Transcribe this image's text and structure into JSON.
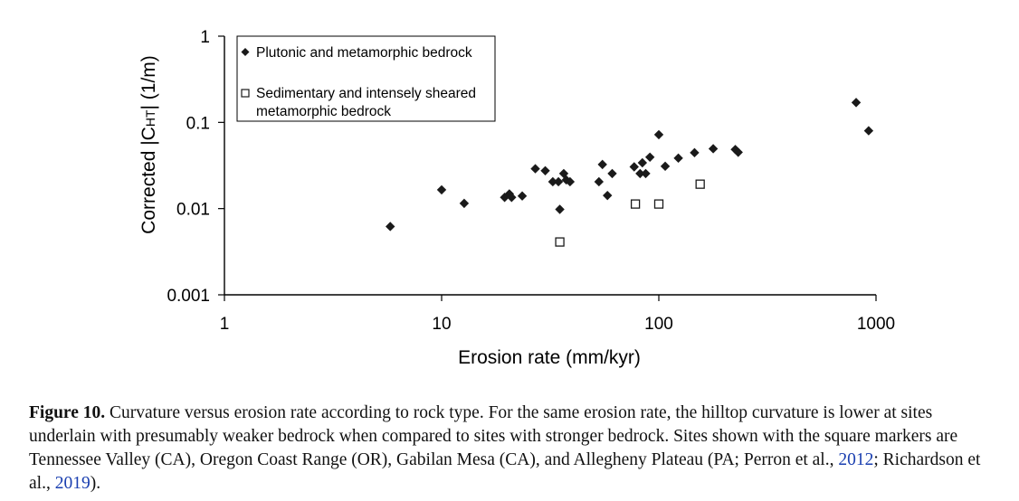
{
  "chart_data": {
    "type": "scatter",
    "xscale": "log",
    "yscale": "log",
    "xlim": [
      1,
      1000
    ],
    "ylim": [
      0.001,
      1
    ],
    "xlabel": "Erosion rate (mm/kyr)",
    "ylabel": "Corrected |C",
    "ylabel_sub": "HT",
    "ylabel_tail": "| (1/m)",
    "x_ticks": [
      {
        "value": 1,
        "label": "1"
      },
      {
        "value": 10,
        "label": "10"
      },
      {
        "value": 100,
        "label": "100"
      },
      {
        "value": 1000,
        "label": "1000"
      }
    ],
    "y_ticks": [
      {
        "value": 1,
        "label": "1"
      },
      {
        "value": 0.1,
        "label": "0.1"
      },
      {
        "value": 0.01,
        "label": "0.01"
      },
      {
        "value": 0.001,
        "label": "0.001"
      }
    ],
    "grid": false,
    "legend_position": "top-left",
    "series": [
      {
        "name": "Plutonic and metamorphic bedrock",
        "marker": "diamond-filled",
        "color": "#1a1a1a",
        "points": [
          [
            5.8,
            0.0062
          ],
          [
            10,
            0.0165
          ],
          [
            12.7,
            0.0115
          ],
          [
            19.5,
            0.0135
          ],
          [
            20.5,
            0.0148
          ],
          [
            21,
            0.0135
          ],
          [
            23.5,
            0.014
          ],
          [
            27,
            0.029
          ],
          [
            30,
            0.0275
          ],
          [
            32.5,
            0.0205
          ],
          [
            34.5,
            0.0205
          ],
          [
            35,
            0.0098
          ],
          [
            36.5,
            0.0255
          ],
          [
            37.5,
            0.0215
          ],
          [
            39,
            0.0205
          ],
          [
            55,
            0.0325
          ],
          [
            58,
            0.0142
          ],
          [
            61,
            0.0255
          ],
          [
            53,
            0.0205
          ],
          [
            77,
            0.0305
          ],
          [
            82,
            0.0255
          ],
          [
            84,
            0.034
          ],
          [
            87,
            0.0255
          ],
          [
            91,
            0.0395
          ],
          [
            100,
            0.072
          ],
          [
            107,
            0.031
          ],
          [
            123,
            0.0385
          ],
          [
            146,
            0.0445
          ],
          [
            178,
            0.0495
          ],
          [
            225,
            0.0485
          ],
          [
            232,
            0.045
          ],
          [
            810,
            0.17
          ],
          [
            925,
            0.08
          ]
        ]
      },
      {
        "name": "Sedimentary and intensely sheared metamorphic bedrock",
        "name_lines": [
          "Sedimentary and intensely sheared",
          "metamorphic bedrock"
        ],
        "marker": "square-open",
        "color": "#1a1a1a",
        "points": [
          [
            35,
            0.0041
          ],
          [
            78,
            0.0113
          ],
          [
            100,
            0.0113
          ],
          [
            155,
            0.0192
          ]
        ]
      }
    ]
  },
  "caption": {
    "label": "Figure 10.",
    "text": "Curvature versus erosion rate according to rock type. For the same erosion rate, the hilltop curvature is lower at sites underlain with presumably weaker bedrock when compared to sites with stronger bedrock. Sites shown with the square markers are Tennessee Valley (CA), Oregon Coast Range (OR), Gabilan Mesa (CA), and Allegheny Plateau (PA; Perron et al., ",
    "ref1": "2012",
    "mid": "; Richardson et al., ",
    "ref2": "2019",
    "end": ")."
  }
}
